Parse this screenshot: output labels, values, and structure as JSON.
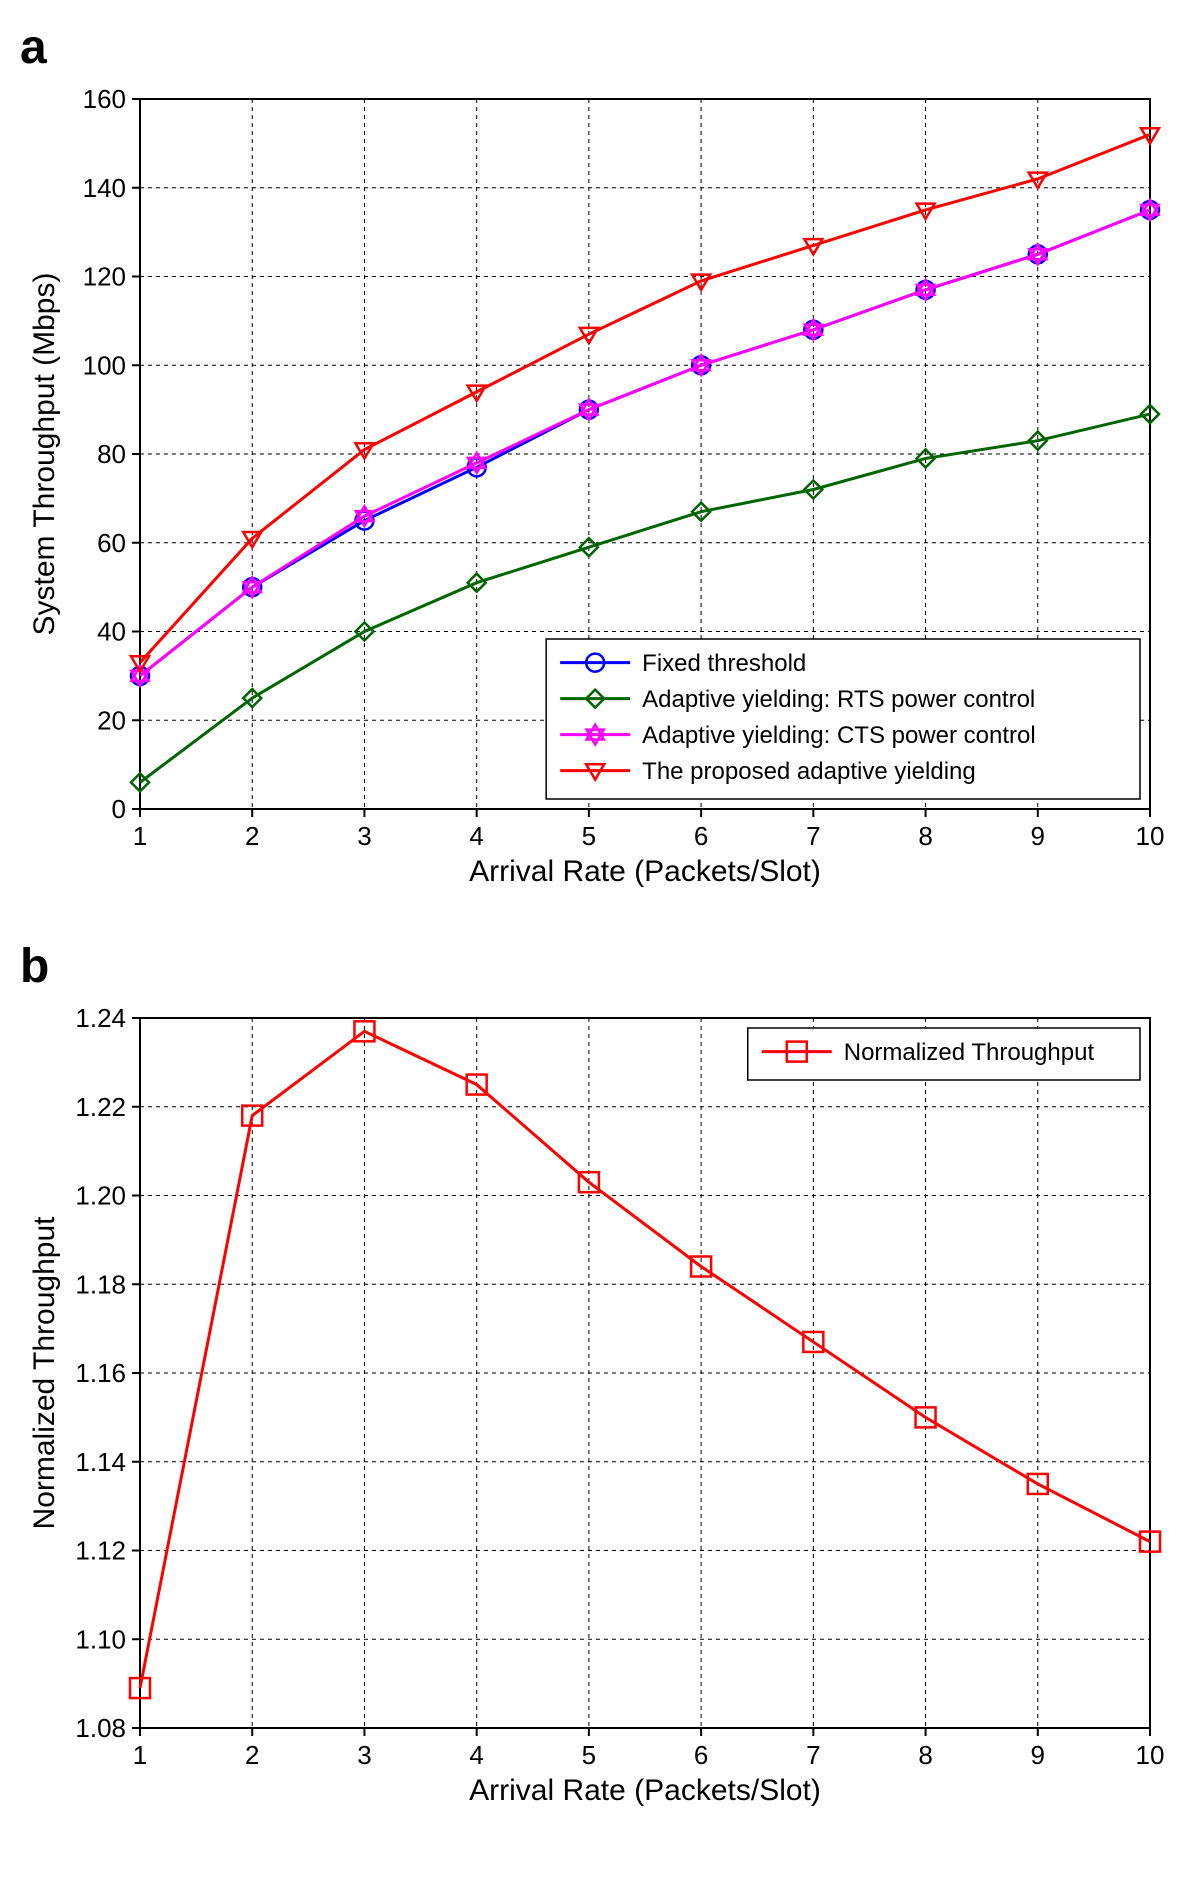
{
  "panelA": {
    "label": "a",
    "type": "line",
    "xlabel": "Arrival Rate (Packets/Slot)",
    "ylabel": "System Throughput (Mbps)",
    "xlim": [
      1,
      10
    ],
    "ylim": [
      0,
      160
    ],
    "xtick_step": 1,
    "ytick_step": 20,
    "background_color": "#ffffff",
    "grid_color": "#000000",
    "grid_dash": "4,4",
    "axis_fontsize": 26,
    "label_fontsize": 30,
    "line_width": 3,
    "marker_size": 9,
    "x": [
      1,
      2,
      3,
      4,
      5,
      6,
      7,
      8,
      9,
      10
    ],
    "series": [
      {
        "name": "Fixed threshold",
        "color": "#0000ff",
        "marker": "circle",
        "y": [
          30,
          50,
          65,
          77,
          90,
          100,
          108,
          117,
          125,
          135
        ]
      },
      {
        "name": "Adaptive yielding: RTS power control",
        "color": "#006400",
        "marker": "diamond",
        "y": [
          6,
          25,
          40,
          51,
          59,
          67,
          72,
          79,
          83,
          89
        ]
      },
      {
        "name": "Adaptive yielding: CTS power control",
        "color": "#ff00ff",
        "marker": "star",
        "y": [
          30,
          50,
          66,
          78,
          90,
          100,
          108,
          117,
          125,
          135
        ]
      },
      {
        "name": "The proposed adaptive yielding",
        "color": "#ff0000",
        "marker": "tri-down",
        "y": [
          33,
          61,
          81,
          94,
          107,
          119,
          127,
          135,
          142,
          152
        ]
      }
    ],
    "legend": {
      "position": "bottom-right",
      "fontsize": 24
    }
  },
  "panelB": {
    "label": "b",
    "type": "line",
    "xlabel": "Arrival Rate (Packets/Slot)",
    "ylabel": "Normalized Throughput",
    "xlim": [
      1,
      10
    ],
    "ylim": [
      1.08,
      1.24
    ],
    "xtick_step": 1,
    "ytick_step": 0.02,
    "background_color": "#ffffff",
    "grid_color": "#000000",
    "grid_dash": "4,4",
    "axis_fontsize": 26,
    "label_fontsize": 30,
    "line_width": 3,
    "marker_size": 10,
    "x": [
      1,
      2,
      3,
      4,
      5,
      6,
      7,
      8,
      9,
      10
    ],
    "series": [
      {
        "name": "Normalized Throughput",
        "color": "#ff0000",
        "marker": "square",
        "y": [
          1.089,
          1.218,
          1.237,
          1.225,
          1.203,
          1.184,
          1.167,
          1.15,
          1.135,
          1.122
        ]
      }
    ],
    "legend": {
      "position": "top-right",
      "fontsize": 24
    }
  }
}
